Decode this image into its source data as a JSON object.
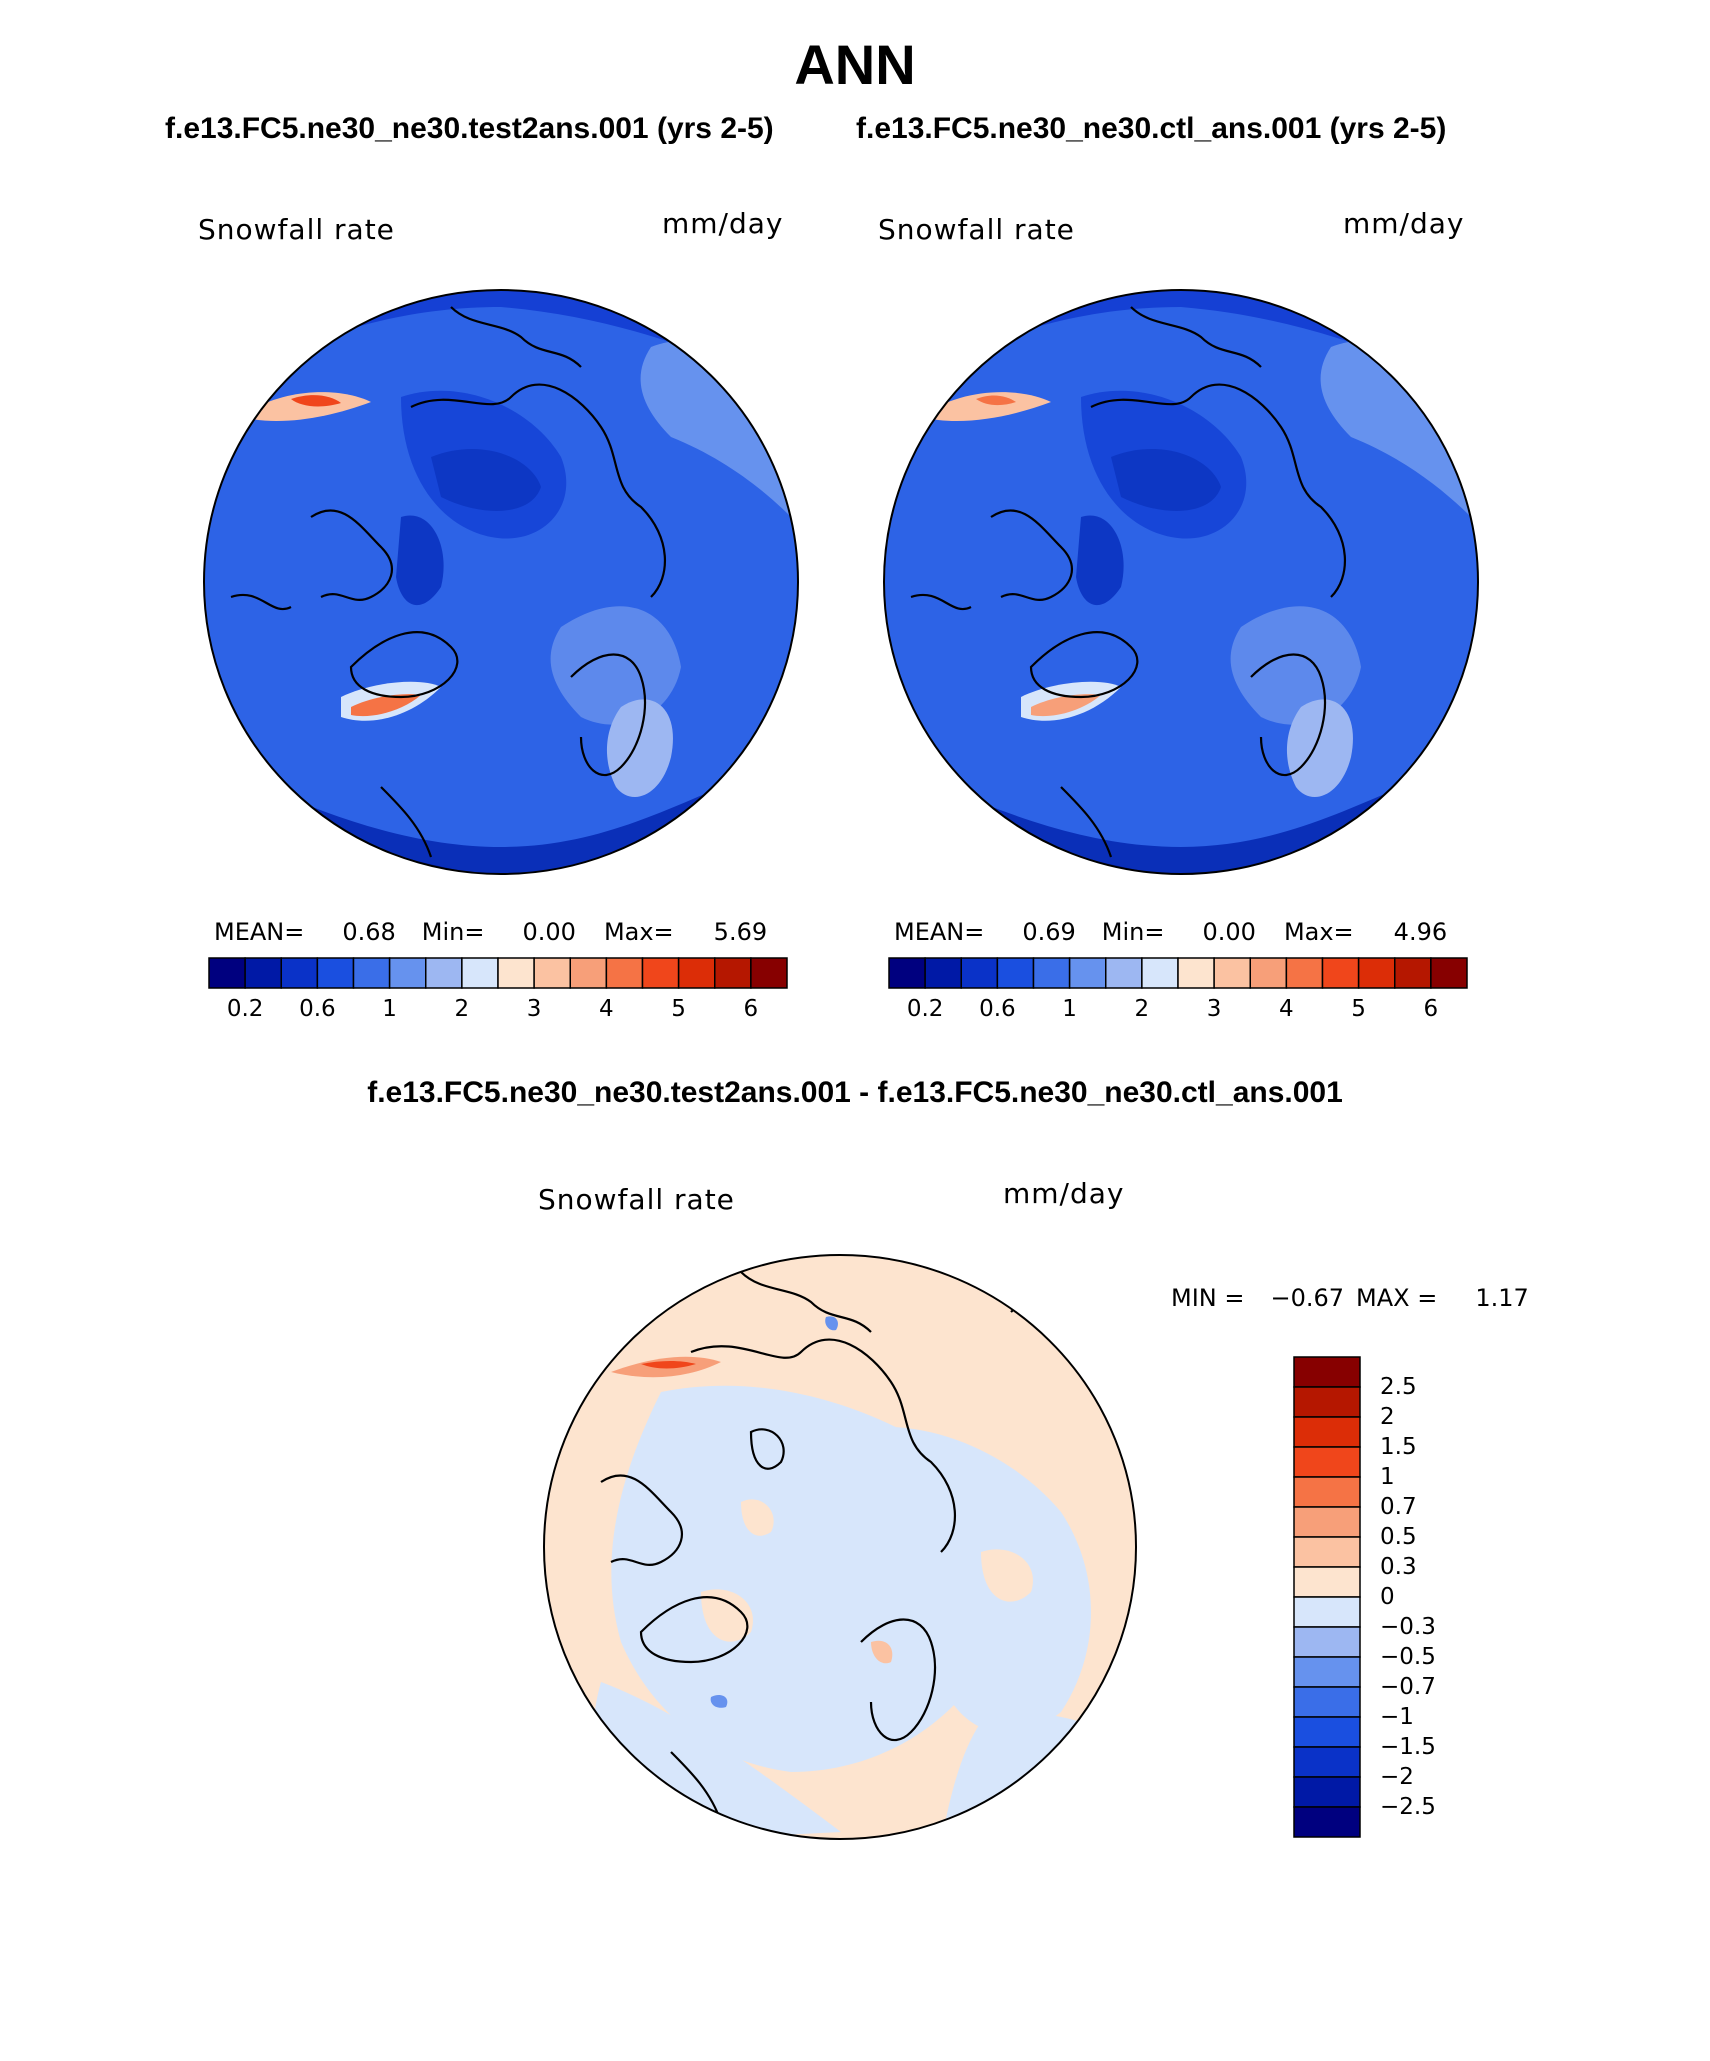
{
  "title": "ANN",
  "panel1": {
    "case": "f.e13.FC5.ne30_ne30.test2ans.001 (yrs 2-5)",
    "variable": "Snowfall rate",
    "units": "mm/day",
    "mean_label": "MEAN=",
    "mean": "0.68",
    "min_label": "Min=",
    "min": "0.00",
    "max_label": "Max=",
    "max": "5.69"
  },
  "panel2": {
    "case": "f.e13.FC5.ne30_ne30.ctl_ans.001 (yrs 2-5)",
    "variable": "Snowfall rate",
    "units": "mm/day",
    "mean_label": "MEAN=",
    "mean": "0.69",
    "min_label": "Min=",
    "min": "0.00",
    "max_label": "Max=",
    "max": "4.96"
  },
  "field_colorbar": {
    "colors": [
      "#00007f",
      "#0019a6",
      "#0a32c8",
      "#1a4fe0",
      "#3a6ee8",
      "#6692ee",
      "#9db7f2",
      "#d7e6fb",
      "#fde4cf",
      "#fbc2a2",
      "#f79f79",
      "#f57345",
      "#f0461b",
      "#dc2d07",
      "#b51700",
      "#870000"
    ],
    "tick_labels": [
      "0.2",
      "0.6",
      "1",
      "2",
      "3",
      "4",
      "5",
      "6"
    ]
  },
  "panel3": {
    "title": "f.e13.FC5.ne30_ne30.test2ans.001 - f.e13.FC5.ne30_ne30.ctl_ans.001",
    "variable": "Snowfall rate",
    "units": "mm/day",
    "min_label": "MIN =",
    "min": "−0.67",
    "max_label": "MAX =",
    "max": "1.17"
  },
  "diff_colorbar": {
    "colors": [
      "#870000",
      "#b51700",
      "#dc2d07",
      "#f0461b",
      "#f57345",
      "#f79f79",
      "#fbc2a2",
      "#fde4cf",
      "#d7e6fb",
      "#9db7f2",
      "#6692ee",
      "#3a6ee8",
      "#1a4fe0",
      "#0a32c8",
      "#0019a6",
      "#00007f"
    ],
    "tick_labels": [
      "2.5",
      "2",
      "1.5",
      "1",
      "0.7",
      "0.5",
      "0.3",
      "0",
      "−0.3",
      "−0.5",
      "−0.7",
      "−1",
      "−1.5",
      "−2",
      "−2.5"
    ]
  }
}
